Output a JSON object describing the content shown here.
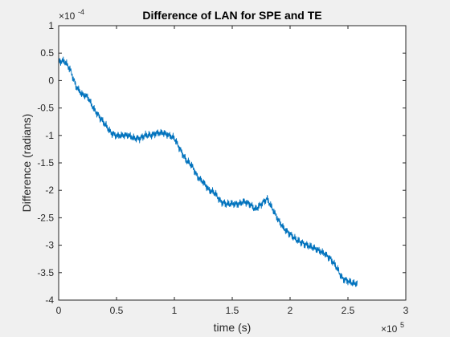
{
  "figure": {
    "background": "#f0f0f0",
    "axes_background": "#ffffff",
    "line_color": "#0072bd",
    "axis_color": "#262626"
  },
  "chart_data": {
    "type": "line",
    "title": "Difference of LAN for SPE and TE",
    "xlabel": "time (s)",
    "ylabel": "Difference (radians)",
    "x_scale_exponent_label": "×10",
    "x_scale_exponent": "5",
    "y_scale_exponent_label": "×10",
    "y_scale_exponent": "-4",
    "xlim": [
      0,
      3
    ],
    "ylim": [
      -4,
      1
    ],
    "x_units_multiplier": 100000,
    "y_units_multiplier": 0.0001,
    "xticks": [
      0,
      0.5,
      1,
      1.5,
      2,
      2.5,
      3
    ],
    "xtick_labels": [
      "0",
      "0.5",
      "1",
      "1.5",
      "2",
      "2.5",
      "3"
    ],
    "yticks": [
      1,
      0.5,
      0,
      -0.5,
      -1,
      -1.5,
      -2,
      -2.5,
      -3,
      -3.5,
      -4
    ],
    "ytick_labels": [
      "1",
      "0.5",
      "0",
      "-0.5",
      "-1",
      "-1.5",
      "-2",
      "-2.5",
      "-3",
      "-3.5",
      "-4"
    ],
    "grid": false,
    "series": [
      {
        "x": [
          0.0,
          0.05,
          0.1,
          0.15,
          0.2,
          0.25,
          0.3,
          0.35,
          0.4,
          0.45,
          0.5,
          0.55,
          0.6,
          0.65,
          0.7,
          0.75,
          0.8,
          0.85,
          0.9,
          0.95,
          1.0,
          1.05,
          1.1,
          1.15,
          1.2,
          1.25,
          1.3,
          1.35,
          1.4,
          1.45,
          1.5,
          1.55,
          1.6,
          1.65,
          1.7,
          1.75,
          1.8,
          1.85,
          1.9,
          1.95,
          2.0,
          2.05,
          2.1,
          2.15,
          2.2,
          2.25,
          2.3,
          2.35,
          2.4,
          2.45,
          2.5,
          2.55,
          2.58
        ],
        "y": [
          0.35,
          0.35,
          0.2,
          -0.1,
          -0.25,
          -0.3,
          -0.5,
          -0.65,
          -0.8,
          -0.95,
          -1.0,
          -1.0,
          -1.0,
          -1.05,
          -1.05,
          -1.0,
          -1.0,
          -0.95,
          -0.95,
          -1.0,
          -1.05,
          -1.25,
          -1.45,
          -1.55,
          -1.75,
          -1.85,
          -2.0,
          -2.05,
          -2.2,
          -2.25,
          -2.25,
          -2.25,
          -2.2,
          -2.25,
          -2.35,
          -2.25,
          -2.15,
          -2.35,
          -2.55,
          -2.7,
          -2.8,
          -2.9,
          -2.95,
          -3.0,
          -3.05,
          -3.1,
          -3.15,
          -3.25,
          -3.4,
          -3.6,
          -3.65,
          -3.7,
          -3.7
        ],
        "oscillation_amplitude": 0.07
      }
    ]
  }
}
